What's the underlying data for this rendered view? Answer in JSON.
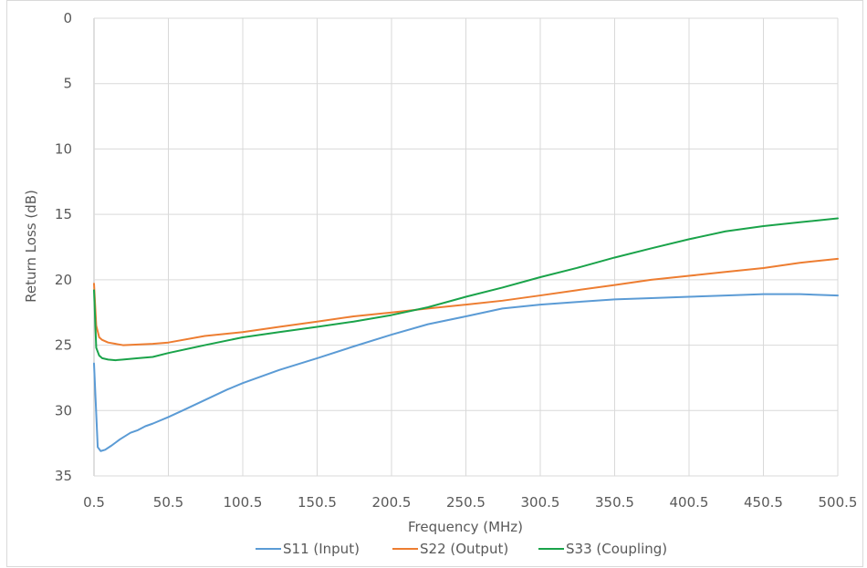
{
  "chart_data": {
    "type": "line",
    "title": "",
    "xlabel": "Frequency (MHz)",
    "ylabel": "Return Loss (dB)",
    "xlim": [
      0.5,
      500.5
    ],
    "ylim": [
      0,
      35
    ],
    "y_reversed": true,
    "x_ticks": [
      "0.5",
      "50.5",
      "100.5",
      "150.5",
      "200.5",
      "250.5",
      "300.5",
      "350.5",
      "400.5",
      "450.5",
      "500.5"
    ],
    "y_ticks": [
      "0",
      "5",
      "10",
      "15",
      "20",
      "25",
      "30",
      "35"
    ],
    "grid": true,
    "legend_position": "bottom",
    "series": [
      {
        "name": "S11 (Input)",
        "color": "#5b9bd5",
        "x": [
          0.5,
          3,
          5,
          8,
          12,
          18,
          25,
          30,
          35,
          40,
          50.5,
          60,
          75,
          90,
          100.5,
          125,
          150.5,
          175,
          200.5,
          225,
          250.5,
          275,
          300.5,
          325,
          350.5,
          375,
          400.5,
          425,
          450.5,
          475,
          500.5
        ],
        "y": [
          26.4,
          32.8,
          33.1,
          33.0,
          32.7,
          32.2,
          31.7,
          31.5,
          31.2,
          31.0,
          30.5,
          30.0,
          29.2,
          28.4,
          27.9,
          26.9,
          26.0,
          25.1,
          24.2,
          23.4,
          22.8,
          22.2,
          21.9,
          21.7,
          21.5,
          21.4,
          21.3,
          21.2,
          21.1,
          21.1,
          21.2
        ]
      },
      {
        "name": "S22 (Output)",
        "color": "#ed7d31",
        "x": [
          0.5,
          2,
          4,
          6,
          10,
          15,
          20,
          30,
          40,
          50.5,
          75,
          100.5,
          125,
          150.5,
          175,
          200.5,
          225,
          250.5,
          275,
          300.5,
          325,
          350.5,
          375,
          400.5,
          425,
          450.5,
          475,
          500.5
        ],
        "y": [
          20.3,
          23.5,
          24.4,
          24.6,
          24.8,
          24.9,
          25.0,
          24.95,
          24.9,
          24.8,
          24.3,
          24.0,
          23.6,
          23.2,
          22.8,
          22.5,
          22.2,
          21.9,
          21.6,
          21.2,
          20.8,
          20.4,
          20.0,
          19.7,
          19.4,
          19.1,
          18.7,
          18.4
        ]
      },
      {
        "name": "S33 (Coupling)",
        "color": "#1aa34a",
        "x": [
          0.5,
          2,
          4,
          6,
          10,
          15,
          20,
          30,
          40,
          50.5,
          75,
          100.5,
          125,
          150.5,
          175,
          200.5,
          225,
          250.5,
          275,
          300.5,
          325,
          350.5,
          375,
          400.5,
          425,
          450.5,
          475,
          500.5
        ],
        "y": [
          20.8,
          25.2,
          25.8,
          26.0,
          26.1,
          26.15,
          26.1,
          26.0,
          25.9,
          25.6,
          25.0,
          24.4,
          24.0,
          23.6,
          23.2,
          22.7,
          22.1,
          21.3,
          20.6,
          19.8,
          19.1,
          18.3,
          17.6,
          16.9,
          16.3,
          15.9,
          15.6,
          15.3
        ]
      }
    ]
  }
}
